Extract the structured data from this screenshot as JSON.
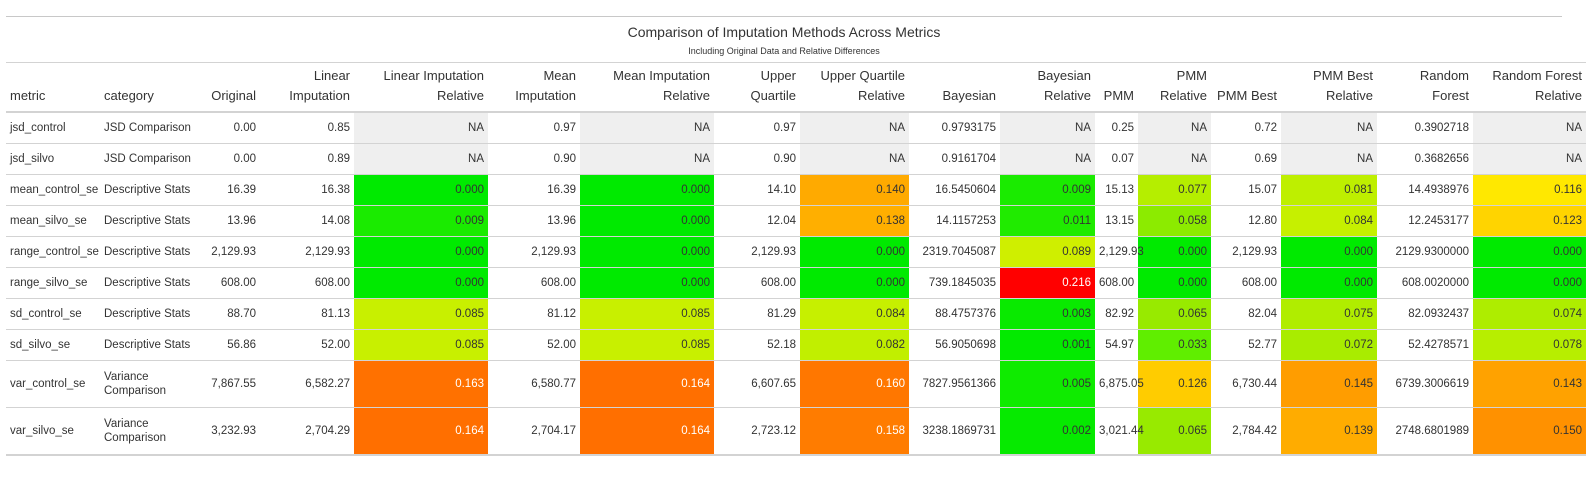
{
  "chart_data": {
    "type": "table",
    "title": "Comparison of Imputation Methods Across Metrics",
    "subtitle": "Including Original Data and Relative Differences",
    "columns": [
      {
        "key": "metric",
        "label": "metric",
        "align": "left"
      },
      {
        "key": "category",
        "label": "category",
        "align": "left"
      },
      {
        "key": "original",
        "label": "Original",
        "align": "right"
      },
      {
        "key": "linear",
        "label": "Linear Imputation",
        "align": "right"
      },
      {
        "key": "linear_rel",
        "label": "Linear Imputation Relative",
        "align": "right",
        "relative": true
      },
      {
        "key": "mean",
        "label": "Mean Imputation",
        "align": "right"
      },
      {
        "key": "mean_rel",
        "label": "Mean Imputation Relative",
        "align": "right",
        "relative": true
      },
      {
        "key": "uq",
        "label": "Upper Quartile",
        "align": "right"
      },
      {
        "key": "uq_rel",
        "label": "Upper Quartile Relative",
        "align": "right",
        "relative": true
      },
      {
        "key": "bayes",
        "label": "Bayesian",
        "align": "right"
      },
      {
        "key": "bayes_rel",
        "label": "Bayesian Relative",
        "align": "right",
        "relative": true
      },
      {
        "key": "pmm",
        "label": "PMM",
        "align": "right"
      },
      {
        "key": "pmm_rel",
        "label": "PMM Relative",
        "align": "right",
        "relative": true
      },
      {
        "key": "pmmbest",
        "label": "PMM Best",
        "align": "right"
      },
      {
        "key": "pmmbest_rel",
        "label": "PMM Best Relative",
        "align": "right",
        "relative": true
      },
      {
        "key": "rf",
        "label": "Random Forest",
        "align": "right"
      },
      {
        "key": "rf_rel",
        "label": "Random Forest Relative",
        "align": "right",
        "relative": true
      }
    ],
    "rows": [
      {
        "metric": "jsd_control",
        "category": "JSD Comparison",
        "original": "0.00",
        "linear": "0.85",
        "linear_rel": "NA",
        "mean": "0.97",
        "mean_rel": "NA",
        "uq": "0.97",
        "uq_rel": "NA",
        "bayes": "0.9793175",
        "bayes_rel": "NA",
        "pmm": "0.25",
        "pmm_rel": "NA",
        "pmmbest": "0.72",
        "pmmbest_rel": "NA",
        "rf": "0.3902718",
        "rf_rel": "NA"
      },
      {
        "metric": "jsd_silvo",
        "category": "JSD Comparison",
        "original": "0.00",
        "linear": "0.89",
        "linear_rel": "NA",
        "mean": "0.90",
        "mean_rel": "NA",
        "uq": "0.90",
        "uq_rel": "NA",
        "bayes": "0.9161704",
        "bayes_rel": "NA",
        "pmm": "0.07",
        "pmm_rel": "NA",
        "pmmbest": "0.69",
        "pmmbest_rel": "NA",
        "rf": "0.3682656",
        "rf_rel": "NA"
      },
      {
        "metric": "mean_control_se",
        "category": "Descriptive Stats",
        "original": "16.39",
        "linear": "16.38",
        "linear_rel": "0.000",
        "mean": "16.39",
        "mean_rel": "0.000",
        "uq": "14.10",
        "uq_rel": "0.140",
        "bayes": "16.5450604",
        "bayes_rel": "0.009",
        "pmm": "15.13",
        "pmm_rel": "0.077",
        "pmmbest": "15.07",
        "pmmbest_rel": "0.081",
        "rf": "14.4938976",
        "rf_rel": "0.116"
      },
      {
        "metric": "mean_silvo_se",
        "category": "Descriptive Stats",
        "original": "13.96",
        "linear": "14.08",
        "linear_rel": "0.009",
        "mean": "13.96",
        "mean_rel": "0.000",
        "uq": "12.04",
        "uq_rel": "0.138",
        "bayes": "14.1157253",
        "bayes_rel": "0.011",
        "pmm": "13.15",
        "pmm_rel": "0.058",
        "pmmbest": "12.80",
        "pmmbest_rel": "0.084",
        "rf": "12.2453177",
        "rf_rel": "0.123"
      },
      {
        "metric": "range_control_se",
        "category": "Descriptive Stats",
        "original": "2,129.93",
        "linear": "2,129.93",
        "linear_rel": "0.000",
        "mean": "2,129.93",
        "mean_rel": "0.000",
        "uq": "2,129.93",
        "uq_rel": "0.000",
        "bayes": "2319.7045087",
        "bayes_rel": "0.089",
        "pmm": "2,129.93",
        "pmm_rel": "0.000",
        "pmmbest": "2,129.93",
        "pmmbest_rel": "0.000",
        "rf": "2129.9300000",
        "rf_rel": "0.000"
      },
      {
        "metric": "range_silvo_se",
        "category": "Descriptive Stats",
        "original": "608.00",
        "linear": "608.00",
        "linear_rel": "0.000",
        "mean": "608.00",
        "mean_rel": "0.000",
        "uq": "608.00",
        "uq_rel": "0.000",
        "bayes": "739.1845035",
        "bayes_rel": "0.216",
        "pmm": "608.00",
        "pmm_rel": "0.000",
        "pmmbest": "608.00",
        "pmmbest_rel": "0.000",
        "rf": "608.0020000",
        "rf_rel": "0.000"
      },
      {
        "metric": "sd_control_se",
        "category": "Descriptive Stats",
        "original": "88.70",
        "linear": "81.13",
        "linear_rel": "0.085",
        "mean": "81.12",
        "mean_rel": "0.085",
        "uq": "81.29",
        "uq_rel": "0.084",
        "bayes": "88.4757376",
        "bayes_rel": "0.003",
        "pmm": "82.92",
        "pmm_rel": "0.065",
        "pmmbest": "82.04",
        "pmmbest_rel": "0.075",
        "rf": "82.0932437",
        "rf_rel": "0.074"
      },
      {
        "metric": "sd_silvo_se",
        "category": "Descriptive Stats",
        "original": "56.86",
        "linear": "52.00",
        "linear_rel": "0.085",
        "mean": "52.00",
        "mean_rel": "0.085",
        "uq": "52.18",
        "uq_rel": "0.082",
        "bayes": "56.9050698",
        "bayes_rel": "0.001",
        "pmm": "54.97",
        "pmm_rel": "0.033",
        "pmmbest": "52.77",
        "pmmbest_rel": "0.072",
        "rf": "52.4278571",
        "rf_rel": "0.078"
      },
      {
        "metric": "var_control_se",
        "category": "Variance Comparison",
        "original": "7,867.55",
        "linear": "6,582.27",
        "linear_rel": "0.163",
        "mean": "6,580.77",
        "mean_rel": "0.164",
        "uq": "6,607.65",
        "uq_rel": "0.160",
        "bayes": "7827.9561366",
        "bayes_rel": "0.005",
        "pmm": "6,875.05",
        "pmm_rel": "0.126",
        "pmmbest": "6,730.44",
        "pmmbest_rel": "0.145",
        "rf": "6739.3006619",
        "rf_rel": "0.143"
      },
      {
        "metric": "var_silvo_se",
        "category": "Variance Comparison",
        "original": "3,232.93",
        "linear": "2,704.29",
        "linear_rel": "0.164",
        "mean": "2,704.17",
        "mean_rel": "0.164",
        "uq": "2,723.12",
        "uq_rel": "0.158",
        "bayes": "3238.1869731",
        "bayes_rel": "0.002",
        "pmm": "3,021.44",
        "pmm_rel": "0.065",
        "pmmbest": "2,784.42",
        "pmmbest_rel": "0.139",
        "rf": "2748.6801989",
        "rf_rel": "0.150"
      }
    ],
    "na_color": "#efefef",
    "color_stops": [
      {
        "value": 0.0,
        "color": "#00ea00"
      },
      {
        "value": 0.035,
        "color": "#66ee00"
      },
      {
        "value": 0.065,
        "color": "#98ea00"
      },
      {
        "value": 0.085,
        "color": "#c8f000"
      },
      {
        "value": 0.116,
        "color": "#ffe800"
      },
      {
        "value": 0.126,
        "color": "#ffcc00"
      },
      {
        "value": 0.14,
        "color": "#ffaa00"
      },
      {
        "value": 0.16,
        "color": "#ff7700"
      },
      {
        "value": 0.216,
        "color": "#ff0000"
      }
    ]
  }
}
